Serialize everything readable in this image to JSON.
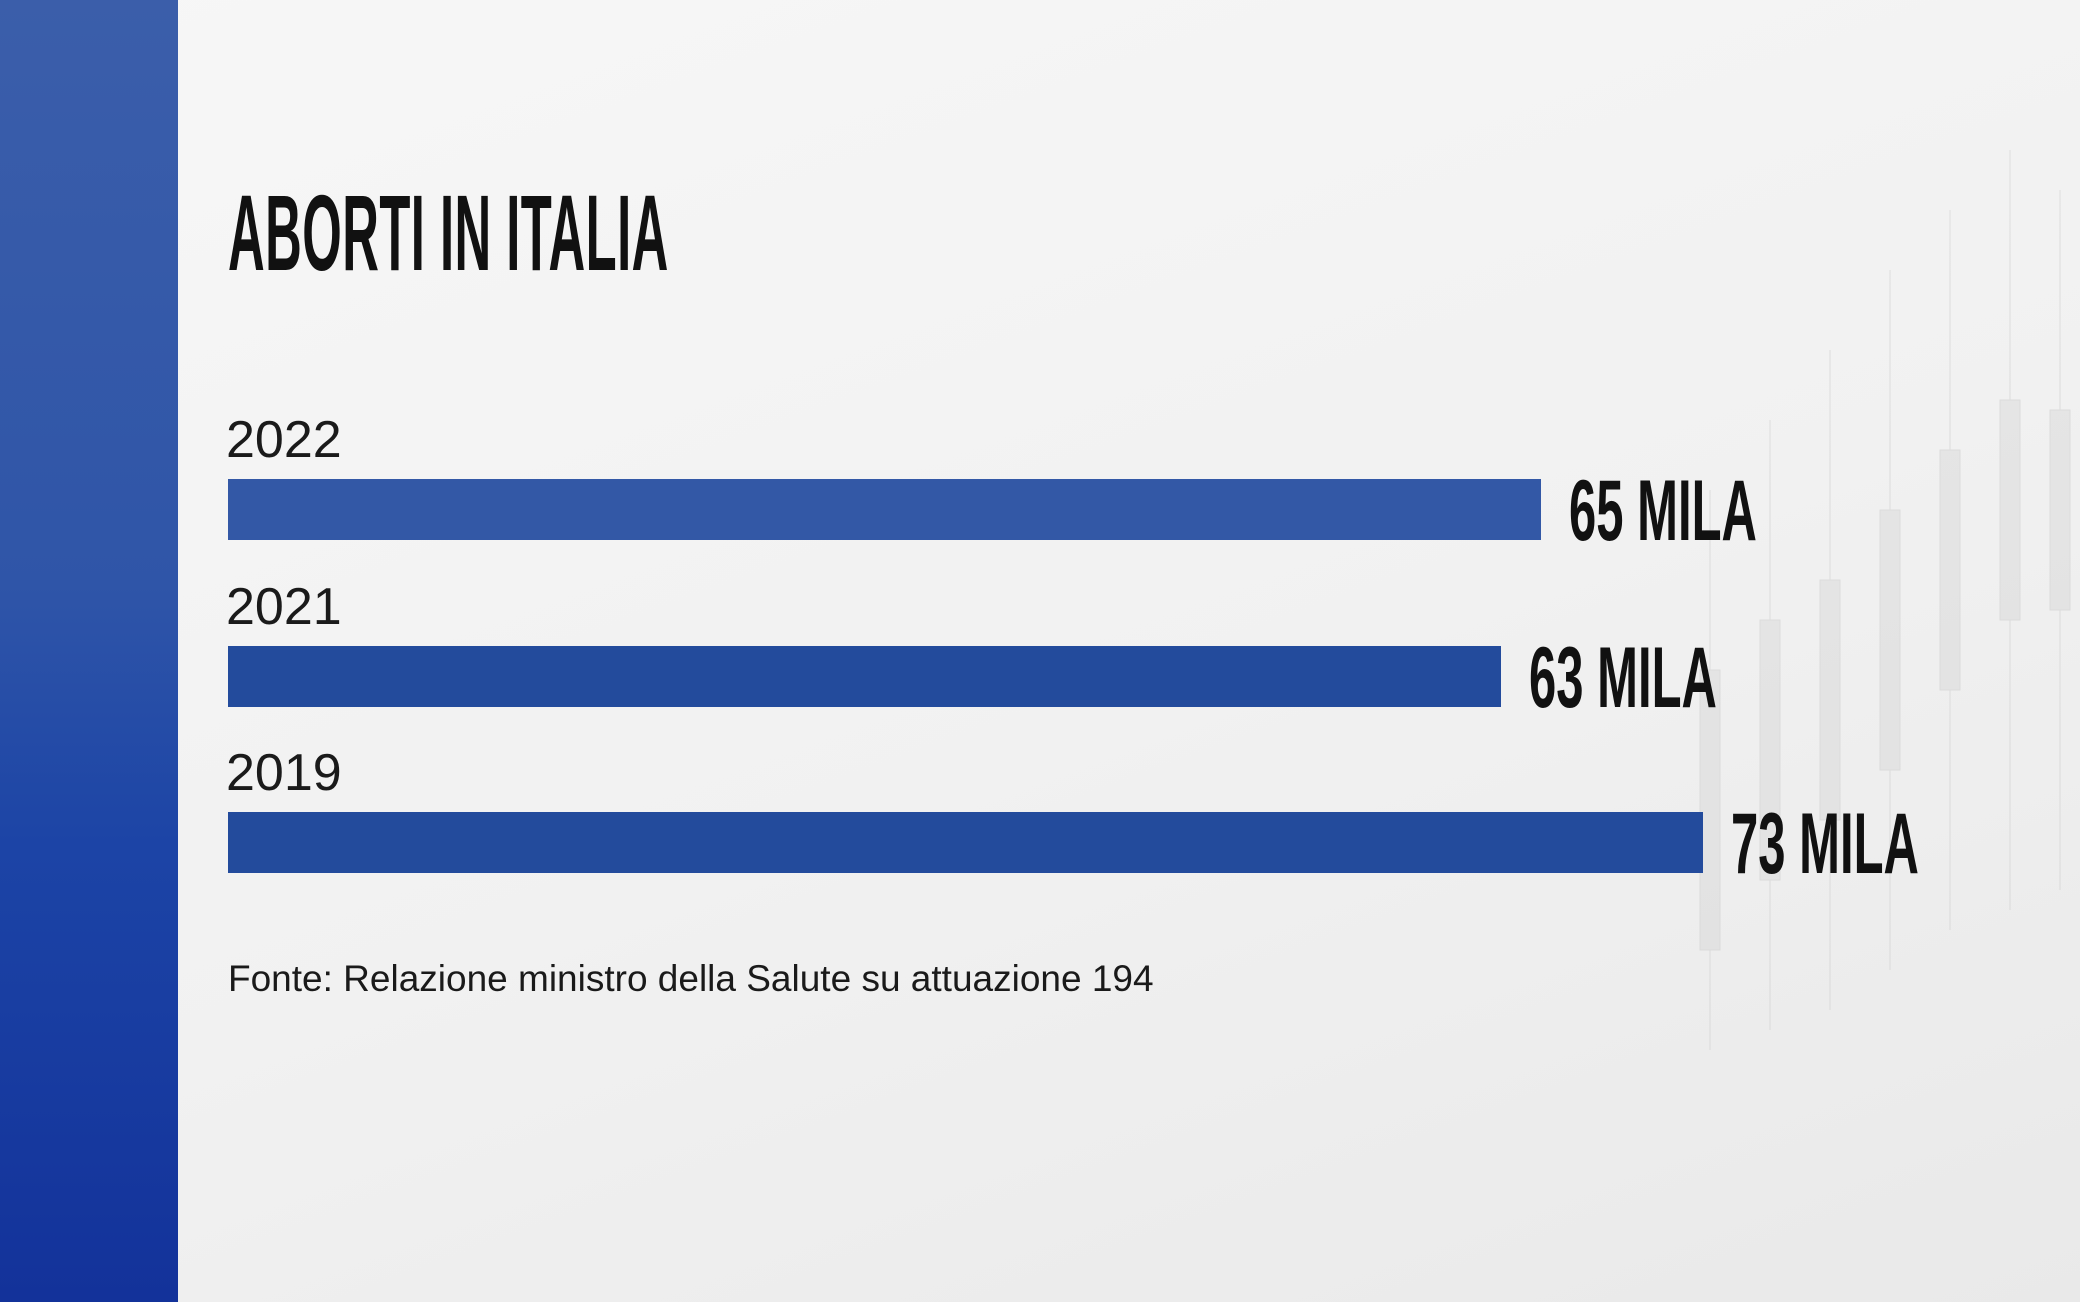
{
  "chart_data": {
    "type": "bar",
    "orientation": "horizontal",
    "title": "ABORTI IN ITALIA",
    "categories": [
      "2022",
      "2021",
      "2019"
    ],
    "values": [
      65,
      63,
      73
    ],
    "value_labels": [
      "65 MILA",
      "63 MILA",
      "73 MILA"
    ],
    "unit": "mila",
    "xlim": [
      0,
      73
    ],
    "grid": false,
    "bar_colors": [
      "#3358a6",
      "#234b9c",
      "#234b9c"
    ],
    "source": "Fonte: Relazione ministro della Salute su attuazione 194"
  },
  "colors": {
    "side_panel": "#2f55a8",
    "background": "#f3f3f3"
  }
}
